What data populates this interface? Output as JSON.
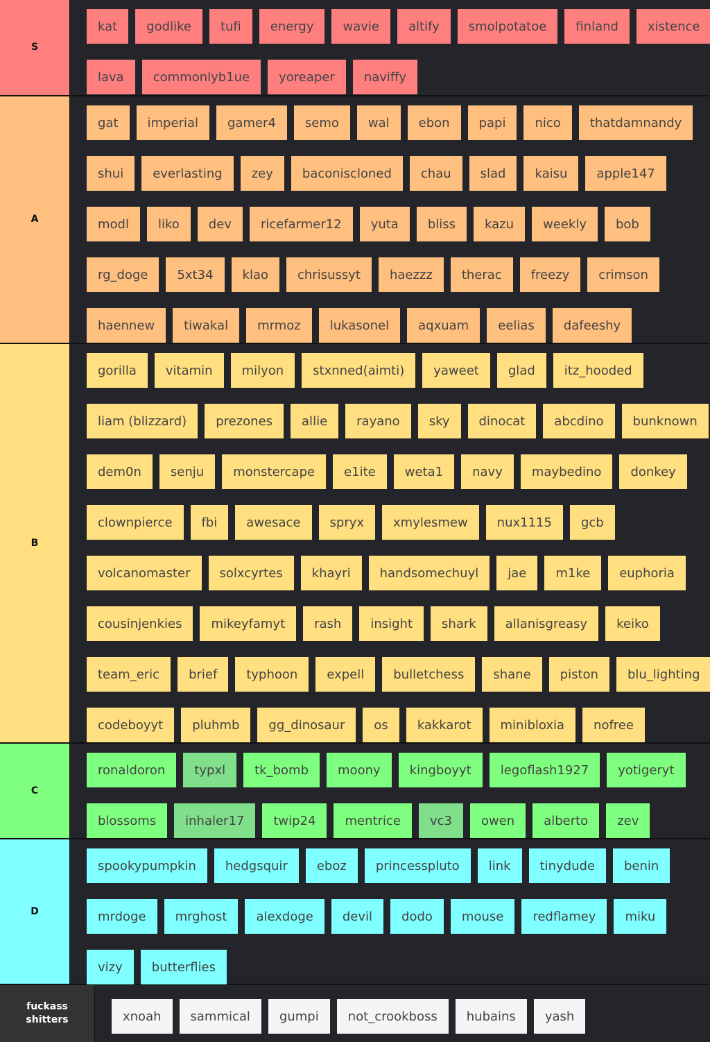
{
  "tiers": [
    {
      "label": "S",
      "color": "#ff7f7f",
      "text_color": "#111111",
      "lines": [
        [
          "kat",
          "godlike",
          "tufi",
          "energy",
          "wavie",
          "altify",
          "smolpotatoe",
          "finland",
          "xistence"
        ],
        [
          "lava",
          "commonlyb1ue",
          "yoreaper",
          "naviffy"
        ]
      ]
    },
    {
      "label": "A",
      "color": "#ffbf7f",
      "text_color": "#111111",
      "lines": [
        [
          "gat",
          "imperial",
          "gamer4",
          "semo",
          "wal",
          "ebon",
          "papi",
          "nico",
          "thatdamnandy"
        ],
        [
          "shui",
          "everlasting",
          "zey",
          "baconiscloned",
          "chau",
          "slad",
          "kaisu",
          "apple147"
        ],
        [
          "modl",
          "liko",
          "dev",
          "ricefarmer12",
          "yuta",
          "bliss",
          "kazu",
          "weekly",
          "bob"
        ],
        [
          "rg_doge",
          "5xt34",
          "klao",
          "chrisussyt",
          "haezzz",
          "therac",
          "freezy",
          "crimson"
        ],
        [
          "haennew",
          "tiwakal",
          "mrmoz",
          "lukasonel",
          "aqxuam",
          "eelias",
          "dafeeshy"
        ]
      ]
    },
    {
      "label": "B",
      "color": "#ffdf7f",
      "text_color": "#111111",
      "lines": [
        [
          "gorilla",
          "vitamin",
          "milyon",
          "stxnned(aimti)",
          "yaweet",
          "glad",
          "itz_hooded"
        ],
        [
          "liam (blizzard)",
          "prezones",
          "allie",
          "rayano",
          "sky",
          "dinocat",
          "abcdino",
          "bunknown"
        ],
        [
          "dem0n",
          "senju",
          "monstercape",
          "e1ite",
          "weta1",
          "navy",
          "maybedino",
          "donkey"
        ],
        [
          "clownpierce",
          "fbi",
          "awesace",
          "spryx",
          "xmylesmew",
          "nux1115",
          "gcb"
        ],
        [
          "volcanomaster",
          "solxcyrtes",
          "khayri",
          "handsomechuyl",
          "jae",
          "m1ke",
          "euphoria"
        ],
        [
          "cousinjenkies",
          "mikeyfamyt",
          "rash",
          "insight",
          "shark",
          "allanisgreasy",
          "keiko"
        ],
        [
          "team_eric",
          "brief",
          "typhoon",
          "expell",
          "bulletchess",
          "shane",
          "piston",
          "blu_lighting"
        ],
        [
          "codeboyyt",
          "pluhmb",
          "gg_dinosaur",
          "os",
          "kakkarot",
          "minibloxia",
          "nofree"
        ]
      ]
    },
    {
      "label": "C",
      "color": "#7fff7f",
      "text_color": "#111111",
      "dim_color": "#7fdf8a",
      "dimmed": [
        "typxl",
        "inhaler17",
        "vc3"
      ],
      "lines": [
        [
          "ronaldoron",
          "typxl",
          "tk_bomb",
          "moony",
          "kingboyyt",
          "legoflash1927",
          "yotigeryt"
        ],
        [
          "blossoms",
          "inhaler17",
          "twip24",
          "mentrice",
          "vc3",
          "owen",
          "alberto",
          "zev"
        ]
      ]
    },
    {
      "label": "D",
      "color": "#7fffff",
      "text_color": "#111111",
      "lines": [
        [
          "spookypumpkin",
          "hedgsquir",
          "eboz",
          "princesspluto",
          "link",
          "tinydude",
          "benin"
        ],
        [
          "mrdoge",
          "mrghost",
          "alexdoge",
          "devil",
          "dodo",
          "mouse",
          "redflamey",
          "miku"
        ],
        [
          "vizy",
          "butterflies"
        ]
      ]
    },
    {
      "label": "fuckass shitters",
      "color": "#333333",
      "text_color": "#ffffff",
      "item_color": "#f5f5f5",
      "lines": [
        [
          "xnoah",
          "sammical",
          "gumpi",
          "not_crookboss",
          "hubains",
          "yash"
        ]
      ]
    }
  ]
}
